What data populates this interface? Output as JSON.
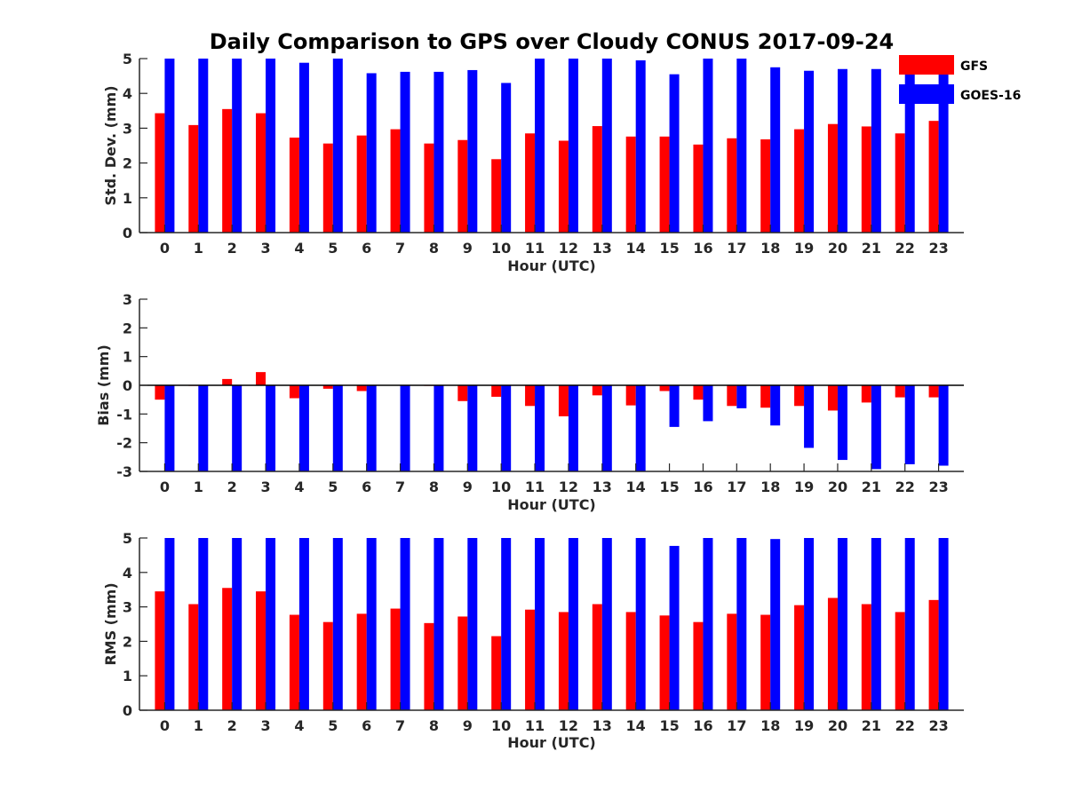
{
  "chart_data": {
    "title": "Daily Comparison to GPS over Cloudy CONUS 2017-09-24",
    "legend": {
      "placement": "top-right",
      "entries": [
        {
          "name": "GFS",
          "color": "#ff0000"
        },
        {
          "name": "GOES-16",
          "color": "#0000ff"
        }
      ]
    },
    "panels": [
      {
        "type": "bar",
        "xlabel": "Hour (UTC)",
        "ylabel": "Std. Dev. (mm)",
        "ylim": [
          0,
          5
        ],
        "yticks": [
          "0",
          "1",
          "2",
          "3",
          "4",
          "5"
        ],
        "categories": [
          "0",
          "1",
          "2",
          "3",
          "4",
          "5",
          "6",
          "7",
          "8",
          "9",
          "10",
          "11",
          "12",
          "13",
          "14",
          "15",
          "16",
          "17",
          "18",
          "19",
          "20",
          "21",
          "22",
          "23"
        ],
        "series": [
          {
            "name": "GFS",
            "color": "#ff0000",
            "values": [
              3.43,
              3.09,
              3.55,
              3.43,
              2.73,
              2.56,
              2.79,
              2.97,
              2.56,
              2.66,
              2.11,
              2.85,
              2.64,
              3.06,
              2.76,
              2.76,
              2.53,
              2.71,
              2.68,
              2.97,
              3.12,
              3.05,
              2.85,
              3.21
            ]
          },
          {
            "name": "GOES-16",
            "color": "#0000ff",
            "values": [
              5.0,
              5.0,
              5.0,
              5.0,
              4.88,
              5.0,
              4.58,
              4.62,
              4.62,
              4.67,
              4.3,
              5.0,
              5.0,
              5.0,
              4.95,
              4.55,
              5.0,
              5.0,
              4.75,
              4.65,
              4.7,
              4.7,
              5.0,
              4.7
            ]
          }
        ]
      },
      {
        "type": "bar",
        "xlabel": "Hour (UTC)",
        "ylabel": "Bias (mm)",
        "ylim": [
          -3,
          3
        ],
        "yticks": [
          "-3",
          "-2",
          "-1",
          "0",
          "1",
          "2",
          "3"
        ],
        "zero_line": true,
        "categories": [
          "0",
          "1",
          "2",
          "3",
          "4",
          "5",
          "6",
          "7",
          "8",
          "9",
          "10",
          "11",
          "12",
          "13",
          "14",
          "15",
          "16",
          "17",
          "18",
          "19",
          "20",
          "21",
          "22",
          "23"
        ],
        "series": [
          {
            "name": "GFS",
            "color": "#ff0000",
            "values": [
              -0.5,
              -0.02,
              0.22,
              0.46,
              -0.45,
              -0.12,
              -0.2,
              0.0,
              -0.02,
              -0.55,
              -0.4,
              -0.72,
              -1.08,
              -0.35,
              -0.7,
              -0.2,
              -0.5,
              -0.72,
              -0.78,
              -0.72,
              -0.88,
              -0.6,
              -0.42,
              -0.42
            ]
          },
          {
            "name": "GOES-16",
            "color": "#0000ff",
            "values": [
              -3.0,
              -3.0,
              -3.0,
              -3.0,
              -3.0,
              -3.0,
              -3.0,
              -3.0,
              -3.0,
              -3.0,
              -3.0,
              -3.0,
              -3.0,
              -3.0,
              -3.0,
              -1.45,
              -1.25,
              -0.8,
              -1.4,
              -2.18,
              -2.6,
              -2.92,
              -2.75,
              -2.8
            ]
          }
        ]
      },
      {
        "type": "bar",
        "xlabel": "Hour (UTC)",
        "ylabel": "RMS (mm)",
        "ylim": [
          0,
          5
        ],
        "yticks": [
          "0",
          "1",
          "2",
          "3",
          "4",
          "5"
        ],
        "categories": [
          "0",
          "1",
          "2",
          "3",
          "4",
          "5",
          "6",
          "7",
          "8",
          "9",
          "10",
          "11",
          "12",
          "13",
          "14",
          "15",
          "16",
          "17",
          "18",
          "19",
          "20",
          "21",
          "22",
          "23"
        ],
        "series": [
          {
            "name": "GFS",
            "color": "#ff0000",
            "values": [
              3.45,
              3.08,
              3.55,
              3.45,
              2.77,
              2.56,
              2.8,
              2.95,
              2.53,
              2.72,
              2.15,
              2.92,
              2.85,
              3.08,
              2.85,
              2.75,
              2.56,
              2.8,
              2.77,
              3.05,
              3.26,
              3.08,
              2.85,
              3.2
            ]
          },
          {
            "name": "GOES-16",
            "color": "#0000ff",
            "values": [
              5.0,
              5.0,
              5.0,
              5.0,
              5.0,
              5.0,
              5.0,
              5.0,
              5.0,
              5.0,
              5.0,
              5.0,
              5.0,
              5.0,
              5.0,
              4.77,
              5.0,
              5.0,
              4.97,
              5.0,
              5.0,
              5.0,
              5.0,
              5.0
            ]
          }
        ]
      }
    ]
  }
}
